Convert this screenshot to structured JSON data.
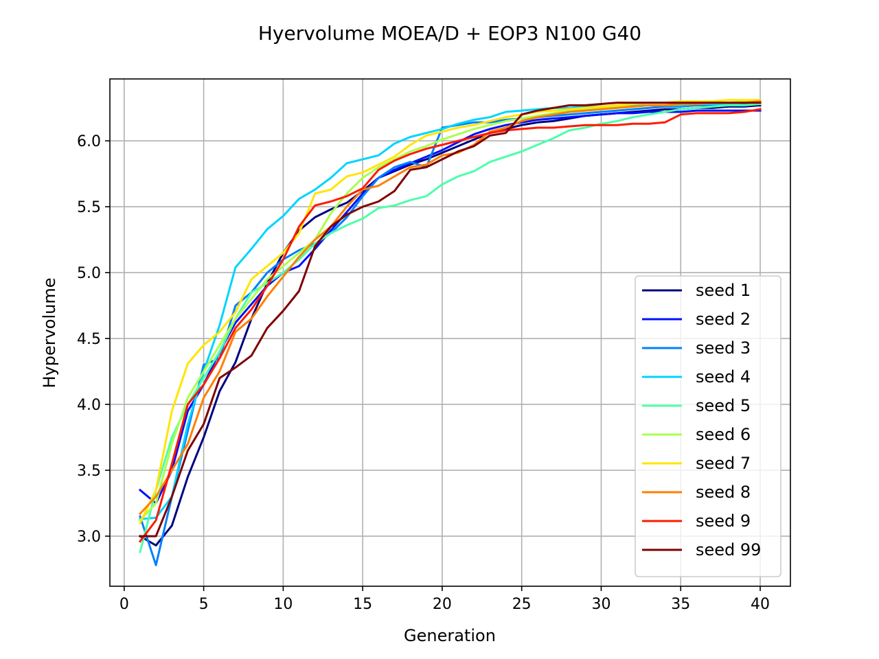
{
  "chart_data": {
    "type": "line",
    "title": "Hyervolume MOEA/D + EOP3 N100 G40",
    "xlabel": "Generation",
    "ylabel": "Hypervolume",
    "xlim": [
      -0.9,
      41.9
    ],
    "ylim": [
      2.62,
      6.47
    ],
    "xticks": [
      0,
      5,
      10,
      15,
      20,
      25,
      30,
      35,
      40
    ],
    "yticks": [
      3.0,
      3.5,
      4.0,
      4.5,
      5.0,
      5.5,
      6.0
    ],
    "grid": true,
    "legend_position": "lower-right",
    "x": [
      1,
      2,
      3,
      4,
      5,
      6,
      7,
      8,
      9,
      10,
      11,
      12,
      13,
      14,
      15,
      16,
      17,
      18,
      19,
      20,
      21,
      22,
      23,
      24,
      25,
      26,
      27,
      28,
      29,
      30,
      31,
      32,
      33,
      34,
      35,
      36,
      37,
      38,
      39,
      40
    ],
    "series": [
      {
        "name": "seed 1",
        "color": "#00007f",
        "values": [
          3.0,
          2.93,
          3.08,
          3.45,
          3.75,
          4.1,
          4.32,
          4.65,
          4.92,
          5.15,
          5.32,
          5.42,
          5.48,
          5.53,
          5.62,
          5.72,
          5.77,
          5.82,
          5.86,
          5.91,
          5.96,
          6.01,
          6.06,
          6.09,
          6.12,
          6.14,
          6.15,
          6.17,
          6.19,
          6.2,
          6.21,
          6.22,
          6.23,
          6.24,
          6.24,
          6.25,
          6.25,
          6.26,
          6.26,
          6.27
        ]
      },
      {
        "name": "seed 2",
        "color": "#0010ff",
        "values": [
          3.35,
          3.25,
          3.5,
          3.95,
          4.15,
          4.4,
          4.62,
          4.76,
          4.9,
          5.0,
          5.05,
          5.18,
          5.32,
          5.46,
          5.6,
          5.72,
          5.78,
          5.83,
          5.88,
          5.93,
          5.99,
          6.05,
          6.09,
          6.12,
          6.14,
          6.16,
          6.17,
          6.18,
          6.19,
          6.2,
          6.21,
          6.21,
          6.22,
          6.22,
          6.22,
          6.23,
          6.23,
          6.23,
          6.23,
          6.23
        ]
      },
      {
        "name": "seed 3",
        "color": "#0080ff",
        "values": [
          3.15,
          2.78,
          3.3,
          3.8,
          4.3,
          4.35,
          4.75,
          4.85,
          5.0,
          5.1,
          5.17,
          5.22,
          5.3,
          5.42,
          5.58,
          5.72,
          5.8,
          5.84,
          5.8,
          6.1,
          6.12,
          6.14,
          6.14,
          6.16,
          6.17,
          6.18,
          6.19,
          6.2,
          6.21,
          6.22,
          6.23,
          6.24,
          6.25,
          6.26,
          6.26,
          6.27,
          6.27,
          6.28,
          6.28,
          6.29
        ]
      },
      {
        "name": "seed 4",
        "color": "#00d4ff",
        "values": [
          3.13,
          3.14,
          3.3,
          3.85,
          4.25,
          4.6,
          5.04,
          5.18,
          5.33,
          5.43,
          5.56,
          5.63,
          5.72,
          5.83,
          5.86,
          5.89,
          5.98,
          6.03,
          6.06,
          6.09,
          6.13,
          6.16,
          6.18,
          6.22,
          6.23,
          6.24,
          6.25,
          6.25,
          6.26,
          6.26,
          6.26,
          6.27,
          6.27,
          6.27,
          6.27,
          6.28,
          6.28,
          6.28,
          6.29,
          6.29
        ]
      },
      {
        "name": "seed 5",
        "color": "#4cffaa",
        "values": [
          2.88,
          3.35,
          3.75,
          4.0,
          4.2,
          4.4,
          4.65,
          4.85,
          4.92,
          5.0,
          5.1,
          5.22,
          5.3,
          5.36,
          5.41,
          5.49,
          5.51,
          5.55,
          5.58,
          5.67,
          5.73,
          5.77,
          5.84,
          5.88,
          5.92,
          5.97,
          6.02,
          6.08,
          6.1,
          6.13,
          6.15,
          6.18,
          6.2,
          6.22,
          6.24,
          6.25,
          6.26,
          6.27,
          6.27,
          6.28
        ]
      },
      {
        "name": "seed 6",
        "color": "#aaff4c",
        "values": [
          3.12,
          3.25,
          3.7,
          4.05,
          4.25,
          4.45,
          4.65,
          4.8,
          4.95,
          5.05,
          5.15,
          5.25,
          5.45,
          5.6,
          5.72,
          5.8,
          5.86,
          5.92,
          5.96,
          6.01,
          6.05,
          6.09,
          6.12,
          6.15,
          6.17,
          6.19,
          6.21,
          6.23,
          6.24,
          6.25,
          6.26,
          6.26,
          6.27,
          6.27,
          6.28,
          6.28,
          6.29,
          6.29,
          6.3,
          6.3
        ]
      },
      {
        "name": "seed 7",
        "color": "#ffe500",
        "values": [
          3.1,
          3.35,
          3.95,
          4.31,
          4.45,
          4.55,
          4.7,
          4.95,
          5.05,
          5.15,
          5.3,
          5.6,
          5.63,
          5.73,
          5.76,
          5.82,
          5.88,
          5.97,
          6.04,
          6.07,
          6.1,
          6.12,
          6.15,
          6.18,
          6.2,
          6.22,
          6.23,
          6.24,
          6.25,
          6.26,
          6.27,
          6.28,
          6.29,
          6.29,
          6.3,
          6.3,
          6.3,
          6.31,
          6.31,
          6.31
        ]
      },
      {
        "name": "seed 8",
        "color": "#ff7f00",
        "values": [
          3.17,
          3.3,
          3.5,
          3.7,
          4.05,
          4.25,
          4.55,
          4.65,
          4.82,
          4.97,
          5.12,
          5.25,
          5.35,
          5.5,
          5.63,
          5.66,
          5.73,
          5.8,
          5.82,
          5.89,
          5.91,
          5.97,
          6.07,
          6.1,
          6.15,
          6.18,
          6.2,
          6.22,
          6.23,
          6.24,
          6.25,
          6.26,
          6.27,
          6.27,
          6.28,
          6.28,
          6.29,
          6.29,
          6.29,
          6.3
        ]
      },
      {
        "name": "seed 9",
        "color": "#ff1a00",
        "values": [
          2.96,
          3.12,
          3.55,
          4.0,
          4.15,
          4.35,
          4.58,
          4.72,
          4.9,
          5.1,
          5.35,
          5.51,
          5.54,
          5.58,
          5.64,
          5.78,
          5.85,
          5.9,
          5.94,
          5.97,
          6.0,
          6.03,
          6.06,
          6.08,
          6.09,
          6.1,
          6.1,
          6.11,
          6.12,
          6.12,
          6.12,
          6.13,
          6.13,
          6.14,
          6.2,
          6.21,
          6.21,
          6.21,
          6.22,
          6.24
        ]
      },
      {
        "name": "seed 99",
        "color": "#7f0000",
        "values": [
          3.0,
          3.0,
          3.3,
          3.65,
          3.85,
          4.2,
          4.28,
          4.37,
          4.58,
          4.71,
          4.86,
          5.2,
          5.35,
          5.44,
          5.5,
          5.54,
          5.62,
          5.78,
          5.8,
          5.86,
          5.92,
          5.96,
          6.04,
          6.06,
          6.2,
          6.23,
          6.25,
          6.27,
          6.27,
          6.28,
          6.29,
          6.29,
          6.29,
          6.29,
          6.29,
          6.29,
          6.29,
          6.29,
          6.29,
          6.29
        ]
      }
    ]
  }
}
